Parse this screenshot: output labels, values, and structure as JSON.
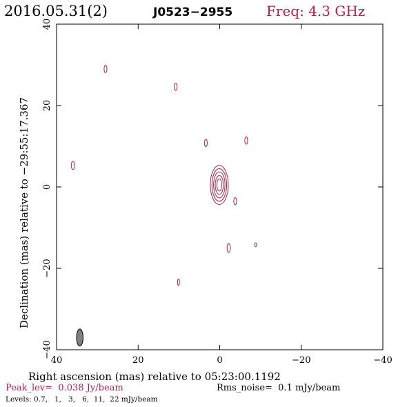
{
  "header": {
    "date": "2016.05.31(2)",
    "source": "J0523−2955",
    "freq": "Freq: 4.3 GHz"
  },
  "footer": {
    "peak": "Peak_lev=  0.038 Jy/beam",
    "rms": "Rms_noise=  0.1 mJy/beam",
    "levels": "Levels: 0.7,   1,   3,   6,  11,  22 mJy/beam"
  },
  "colors": {
    "contour": "#b0204a",
    "beam": "#808080",
    "axis": "#000000"
  },
  "chart_data": {
    "type": "contour",
    "title": "",
    "xlabel": "Right ascension (mas) relative to 05:23:00.1192",
    "ylabel": "Declination (mas) relative to −29:55:17.367",
    "xlim": [
      40,
      -40
    ],
    "ylim": [
      -40,
      40
    ],
    "x_ticks": [
      40,
      20,
      0,
      -20,
      -40
    ],
    "y_ticks": [
      -40,
      -20,
      0,
      20,
      40
    ],
    "x_tick_labels": [
      "40",
      "20",
      "0",
      "−20",
      "−40"
    ],
    "y_tick_labels": [
      "−40",
      "−20",
      "0",
      "20",
      "40"
    ],
    "core": {
      "x": 0.1,
      "y": 0.5,
      "contours": [
        {
          "rx": 2.2,
          "ry": 4.8
        },
        {
          "rx": 1.8,
          "ry": 4.0
        },
        {
          "rx": 1.4,
          "ry": 3.2
        },
        {
          "rx": 1.0,
          "ry": 2.3
        },
        {
          "rx": 0.6,
          "ry": 1.5
        }
      ]
    },
    "components": [
      {
        "x": 28.0,
        "y": 29.0,
        "rx": 0.35,
        "ry": 0.9
      },
      {
        "x": 10.8,
        "y": 24.6,
        "rx": 0.35,
        "ry": 0.9
      },
      {
        "x": 3.4,
        "y": 10.8,
        "rx": 0.35,
        "ry": 0.9
      },
      {
        "x": -6.5,
        "y": 11.4,
        "rx": 0.35,
        "ry": 0.9
      },
      {
        "x": 36.0,
        "y": 5.3,
        "rx": 0.4,
        "ry": 1.0
      },
      {
        "x": -3.8,
        "y": -3.5,
        "rx": 0.35,
        "ry": 0.9
      },
      {
        "x": -2.2,
        "y": -15.0,
        "rx": 0.4,
        "ry": 1.1
      },
      {
        "x": -8.8,
        "y": -14.2,
        "rx": 0.25,
        "ry": 0.5
      },
      {
        "x": 10.1,
        "y": -23.4,
        "rx": 0.25,
        "ry": 0.8
      }
    ],
    "beam": {
      "x": 34.3,
      "y": -37.0,
      "rx": 0.8,
      "ry": 2.1
    }
  }
}
